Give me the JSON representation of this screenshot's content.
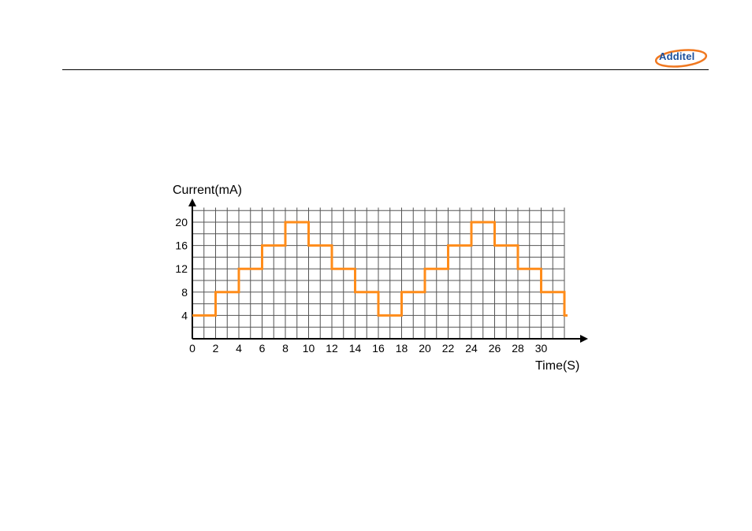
{
  "logo": {
    "text": "Additel"
  },
  "colors": {
    "accent": "#ff8c1a",
    "grid": "#555555",
    "axis": "#000000",
    "logo_blue": "#1b4f9c",
    "logo_orange": "#f07820"
  },
  "chart_data": {
    "type": "line",
    "step": true,
    "title": "",
    "xlabel": "Time(S)",
    "ylabel": "Current(mA)",
    "xlim": [
      0,
      32
    ],
    "ylim": [
      0,
      22
    ],
    "grid": true,
    "x_ticks": [
      0,
      2,
      4,
      6,
      8,
      10,
      12,
      14,
      16,
      18,
      20,
      22,
      24,
      26,
      28,
      30
    ],
    "y_ticks": [
      4,
      8,
      12,
      16,
      20
    ],
    "series": [
      {
        "x": [
          0,
          2,
          4,
          6,
          8,
          10,
          12,
          14,
          16,
          18,
          20,
          22,
          24,
          26,
          28,
          30,
          32
        ],
        "y": [
          4,
          8,
          12,
          16,
          20,
          16,
          12,
          8,
          4,
          8,
          12,
          16,
          20,
          16,
          12,
          8,
          4
        ]
      }
    ]
  }
}
